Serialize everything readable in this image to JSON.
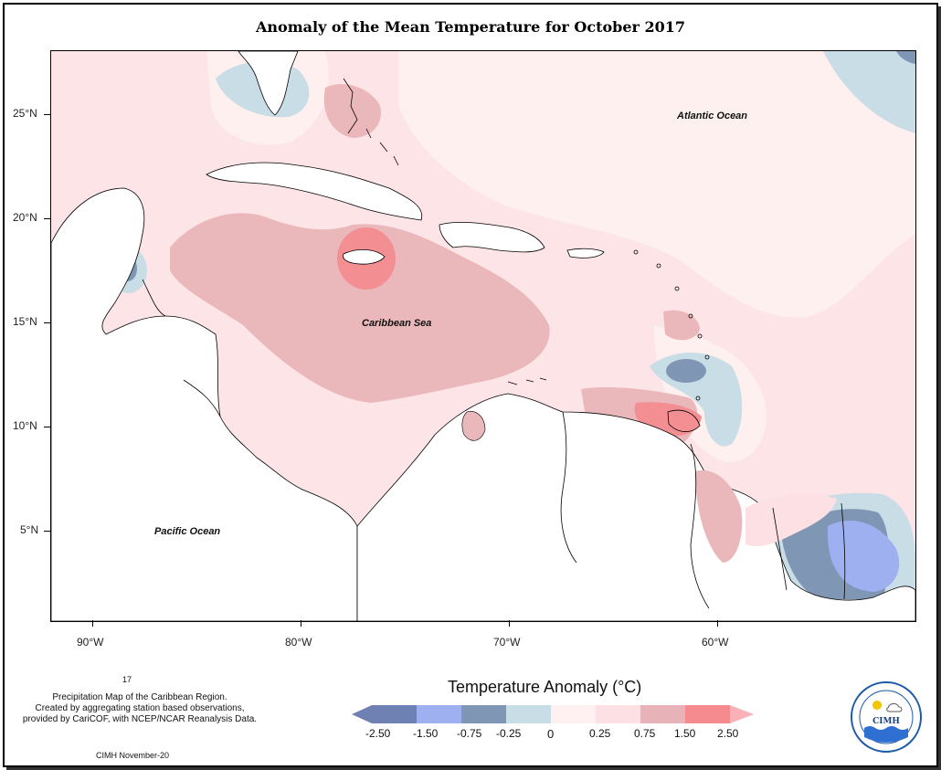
{
  "title": "Anomaly of the Mean Temperature for October 2017",
  "y_axis_labels": [
    "25°N",
    "20°N",
    "15°N",
    "10°N",
    "5°N"
  ],
  "x_axis_labels": [
    "90°W",
    "80°W",
    "70°W",
    "60°W"
  ],
  "ocean_labels": {
    "atlantic": "Atlantic Ocean",
    "caribbean": "Caribbean Sea",
    "pacific": "Pacific Ocean"
  },
  "footnote": {
    "number": "17",
    "lines": [
      "Precipitation Map of the Caribbean Region.",
      "Created by aggregating station based observations,",
      "provided by CariCOF, with NCEP/NCAR Reanalysis Data."
    ],
    "credit": "CIMH November-20"
  },
  "legend": {
    "title": "Temperature Anomaly (°C)",
    "labels": [
      "-2.50",
      "-1.50",
      "-0.75",
      "-0.25",
      "0",
      "0.25",
      "0.75",
      "1.50",
      "2.50"
    ],
    "colors": [
      "#6f80b3",
      "#9eb0f0",
      "#7f97b5",
      "#c9dde6",
      "#fff1f1",
      "#fde0e3",
      "#e8b3b8",
      "#f58a8f",
      "#fab1b5"
    ]
  },
  "logo_text": "CIMH",
  "colors": {
    "land": "#ffffff",
    "ocean_base": "#fde4e6",
    "warm_mid": "#eab7bb",
    "warm_high": "#f38e93",
    "cool_light": "#c9dde6",
    "cool_mid": "#7f97b5",
    "cool_deep": "#9eb0f0"
  }
}
